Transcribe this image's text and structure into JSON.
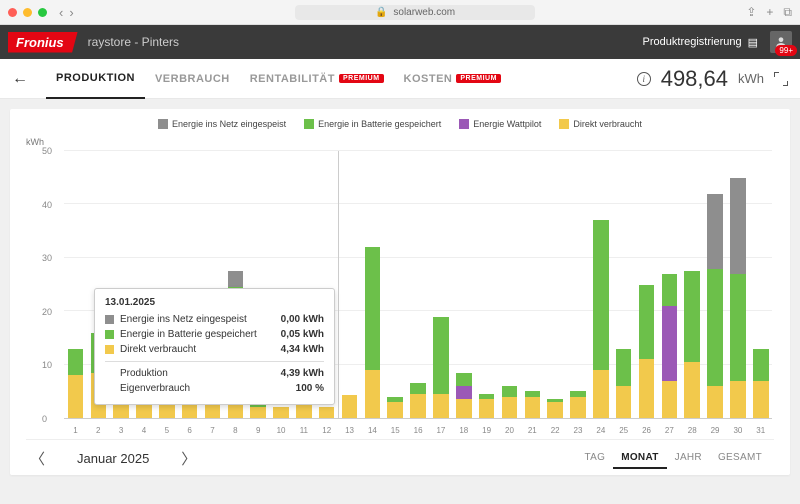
{
  "browser": {
    "url": "solarweb.com"
  },
  "header": {
    "logo": "Fronius",
    "breadcrumb": "raystore - Pinters",
    "prod_reg": "Produktregistrierung",
    "badge": "99+"
  },
  "tabs": {
    "items": [
      {
        "label": "PRODUKTION",
        "active": true,
        "premium": false
      },
      {
        "label": "VERBRAUCH",
        "active": false,
        "premium": false
      },
      {
        "label": "RENTABILITÄT",
        "active": false,
        "premium": true
      },
      {
        "label": "KOSTEN",
        "active": false,
        "premium": true
      }
    ],
    "premium_badge": "PREMIUM",
    "kwh_value": "498,64",
    "kwh_unit": "kWh"
  },
  "chart": {
    "type": "stacked-bar",
    "y_unit": "kWh",
    "ylim": [
      0,
      50
    ],
    "y_ticks": [
      0,
      10,
      20,
      30,
      40,
      50
    ],
    "colors": {
      "grid": "#8e8e8e",
      "battery": "#6cc04a",
      "wattpilot": "#9b59b6",
      "direct": "#f2c94c",
      "bg": "#ffffff",
      "gridline": "#eeeeee"
    },
    "legend": [
      {
        "key": "grid",
        "label": "Energie ins Netz eingespeist",
        "color": "#8e8e8e"
      },
      {
        "key": "battery",
        "label": "Energie in Batterie gespeichert",
        "color": "#6cc04a"
      },
      {
        "key": "wattpilot",
        "label": "Energie Wattpilot",
        "color": "#9b59b6"
      },
      {
        "key": "direct",
        "label": "Direkt verbraucht",
        "color": "#f2c94c"
      }
    ],
    "categories": [
      1,
      2,
      3,
      4,
      5,
      6,
      7,
      8,
      9,
      10,
      11,
      12,
      13,
      14,
      15,
      16,
      17,
      18,
      19,
      20,
      21,
      22,
      23,
      24,
      25,
      26,
      27,
      28,
      29,
      30,
      31
    ],
    "series": {
      "direct": [
        8,
        8.5,
        7,
        8,
        8.5,
        9.5,
        8,
        6.5,
        2,
        2,
        4,
        2,
        4.3,
        9,
        3,
        4.5,
        4.5,
        3.5,
        3.5,
        4,
        4,
        3,
        4,
        9,
        6,
        11,
        7,
        10.5,
        6,
        7,
        7
      ],
      "wattpilot": [
        0,
        0,
        0,
        0,
        0,
        0,
        0,
        0,
        0,
        0,
        0,
        0,
        0,
        0,
        0,
        0,
        0,
        2.5,
        0,
        0,
        0,
        0,
        0,
        0,
        0,
        0,
        14,
        0,
        0,
        0,
        0
      ],
      "battery": [
        5,
        7.5,
        13,
        12,
        12,
        11,
        5,
        18,
        16,
        0,
        14,
        0,
        0.1,
        23,
        1,
        2,
        14.5,
        2.5,
        1,
        2,
        1,
        0.5,
        1,
        28,
        7,
        14,
        6,
        17,
        22,
        20,
        6
      ],
      "grid": [
        0,
        0,
        0,
        0,
        0,
        0,
        3,
        3,
        0,
        0,
        0,
        0,
        0,
        0,
        0,
        0,
        0,
        0,
        0,
        0,
        0,
        0,
        0,
        0,
        0,
        0,
        0,
        0,
        14,
        18,
        0
      ]
    },
    "vline_after_day": 12
  },
  "tooltip": {
    "date": "13.01.2025",
    "rows": [
      {
        "color": "#8e8e8e",
        "label": "Energie ins Netz eingespeist",
        "value": "0,00 kWh"
      },
      {
        "color": "#6cc04a",
        "label": "Energie in Batterie gespeichert",
        "value": "0,05 kWh"
      },
      {
        "color": "#f2c94c",
        "label": "Direkt verbraucht",
        "value": "4,34 kWh"
      }
    ],
    "summary": [
      {
        "label": "Produktion",
        "value": "4,39 kWh"
      },
      {
        "label": "Eigenverbrauch",
        "value": "100 %"
      }
    ]
  },
  "footer": {
    "month": "Januar 2025",
    "periods": [
      {
        "label": "TAG",
        "active": false
      },
      {
        "label": "MONAT",
        "active": true
      },
      {
        "label": "JAHR",
        "active": false
      },
      {
        "label": "GESAMT",
        "active": false
      }
    ]
  }
}
